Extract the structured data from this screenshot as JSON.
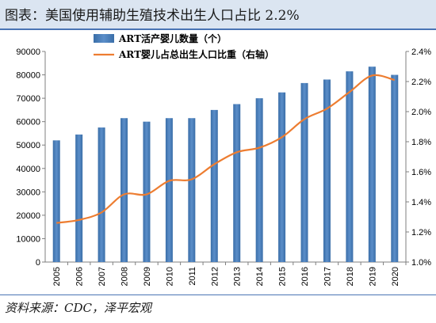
{
  "header": {
    "title": "图表：美国使用辅助生殖技术出生人口占比 2.2%"
  },
  "footer": {
    "source": "资料来源：CDC，泽平宏观"
  },
  "colors": {
    "bar": "#5b8ec9",
    "bar_dark": "#3a6ea8",
    "line": "#ed7d31",
    "header_bg": "#dbe5f1",
    "rule": "#4a74b4"
  },
  "chart_data": {
    "type": "bar",
    "categories": [
      "2005",
      "2006",
      "2007",
      "2008",
      "2009",
      "2010",
      "2011",
      "2012",
      "2013",
      "2014",
      "2015",
      "2016",
      "2017",
      "2018",
      "2019",
      "2020"
    ],
    "series": [
      {
        "name": "ART活产婴儿数量（个）",
        "type": "bar",
        "axis": "left",
        "values": [
          52000,
          54500,
          57500,
          61500,
          60000,
          61500,
          61500,
          65000,
          67500,
          70000,
          72500,
          76500,
          78000,
          81500,
          83500,
          80000
        ]
      },
      {
        "name": "ART婴儿占总出生人口比重（右轴）",
        "type": "line",
        "axis": "right",
        "values": [
          1.26,
          1.28,
          1.33,
          1.45,
          1.45,
          1.54,
          1.55,
          1.65,
          1.73,
          1.76,
          1.83,
          1.95,
          2.02,
          2.13,
          2.24,
          2.21
        ]
      }
    ],
    "ylim": [
      0,
      90000
    ],
    "y2lim": [
      1.0,
      2.4
    ],
    "yticks": [
      "0",
      "10000",
      "20000",
      "30000",
      "40000",
      "50000",
      "60000",
      "70000",
      "80000",
      "90000"
    ],
    "y2ticks": [
      "1.0%",
      "1.2%",
      "1.4%",
      "1.6%",
      "1.8%",
      "2.0%",
      "2.2%",
      "2.4%"
    ],
    "grid": false,
    "legend_position": "top-center"
  }
}
